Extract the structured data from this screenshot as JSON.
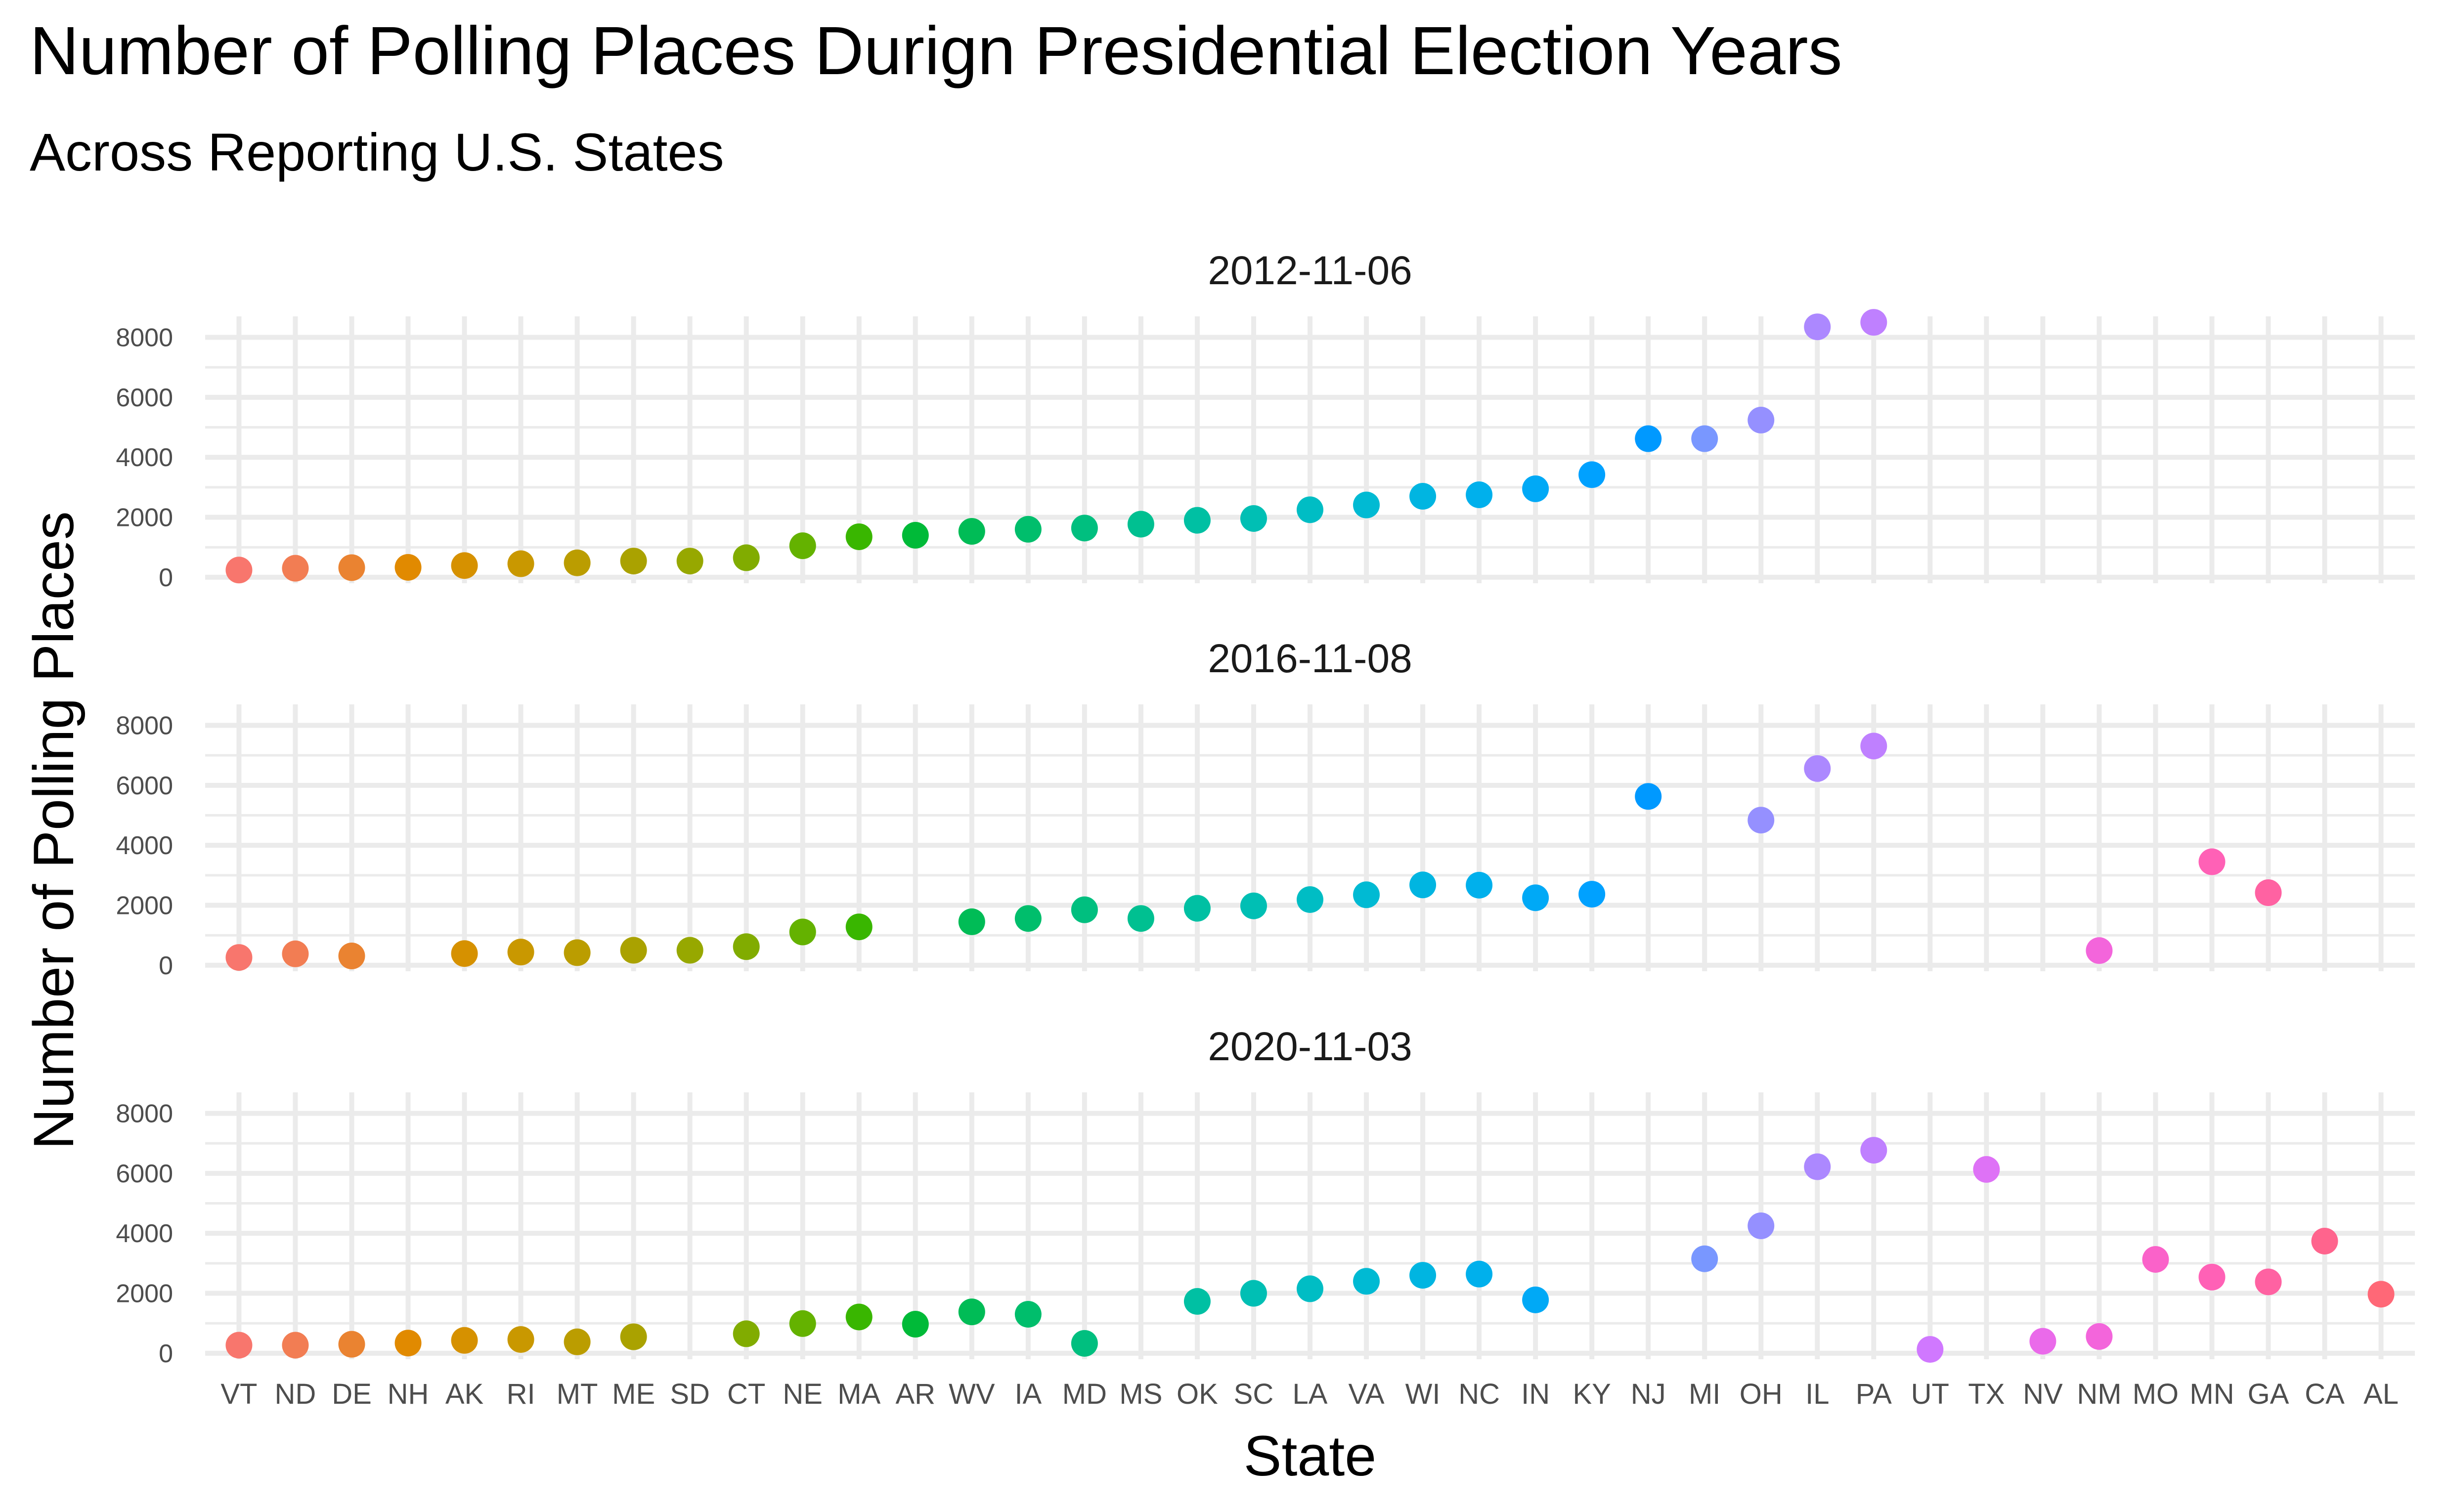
{
  "chart_data": {
    "type": "scatter",
    "title": "Number of Polling Places Durign Presidential Election Years",
    "subtitle": "Across Reporting U.S. States",
    "xlabel": "State",
    "ylabel": "Number of Polling Places",
    "categories": [
      "VT",
      "ND",
      "DE",
      "NH",
      "AK",
      "RI",
      "MT",
      "ME",
      "SD",
      "CT",
      "NE",
      "MA",
      "AR",
      "WV",
      "IA",
      "MD",
      "MS",
      "OK",
      "SC",
      "LA",
      "VA",
      "WI",
      "NC",
      "IN",
      "KY",
      "NJ",
      "MI",
      "OH",
      "IL",
      "PA",
      "UT",
      "TX",
      "NV",
      "NM",
      "MO",
      "MN",
      "GA",
      "CA",
      "AL"
    ],
    "colors": [
      "#F8766D",
      "#F27D53",
      "#EA8331",
      "#E18A00",
      "#D69100",
      "#C99800",
      "#BB9D00",
      "#AAA200",
      "#97A800",
      "#81AC00",
      "#64B200",
      "#39B600",
      "#00BA38",
      "#00BC56",
      "#00BE6C",
      "#00BF7F",
      "#00C091",
      "#00C0A3",
      "#00BFB4",
      "#00BDC4",
      "#00BAD3",
      "#00B5E1",
      "#00B0EC",
      "#00A9F6",
      "#00A1FF",
      "#0099FF",
      "#7997FF",
      "#9590FF",
      "#AC88FF",
      "#BF80FF",
      "#D078FF",
      "#DE72F6",
      "#EA6AEA",
      "#F365DB",
      "#FA62C9",
      "#FF61B6",
      "#FF62A2",
      "#FF648D",
      "#FF6877"
    ],
    "ylim": [
      -200,
      8700
    ],
    "yticks": [
      0,
      2000,
      4000,
      6000,
      8000
    ],
    "legend": "none",
    "grid": true,
    "panels": [
      {
        "label": "2012-11-06",
        "values": [
          240,
          300,
          320,
          330,
          390,
          450,
          480,
          540,
          540,
          650,
          1050,
          1350,
          1400,
          1530,
          1600,
          1640,
          1770,
          1900,
          1960,
          2250,
          2410,
          2700,
          2750,
          2950,
          3420,
          4620,
          4620,
          5240,
          8350,
          8500,
          null,
          null,
          null,
          null,
          null,
          null,
          null,
          null,
          null
        ]
      },
      {
        "label": "2016-11-08",
        "values": [
          260,
          380,
          310,
          null,
          390,
          440,
          420,
          500,
          500,
          620,
          1110,
          1280,
          null,
          1450,
          1560,
          1850,
          1560,
          1900,
          1980,
          2190,
          2350,
          2680,
          2670,
          2250,
          2370,
          5630,
          null,
          4840,
          6560,
          7310,
          null,
          null,
          null,
          490,
          null,
          3450,
          2420,
          null,
          null
        ]
      },
      {
        "label": "2020-11-03",
        "values": [
          270,
          270,
          300,
          340,
          430,
          460,
          380,
          550,
          null,
          650,
          990,
          1210,
          970,
          1380,
          1300,
          330,
          null,
          1730,
          2000,
          2150,
          2400,
          2600,
          2640,
          1780,
          null,
          null,
          3150,
          4250,
          6220,
          6770,
          130,
          6130,
          400,
          560,
          3130,
          2540,
          2380,
          3740,
          1970
        ]
      }
    ]
  }
}
